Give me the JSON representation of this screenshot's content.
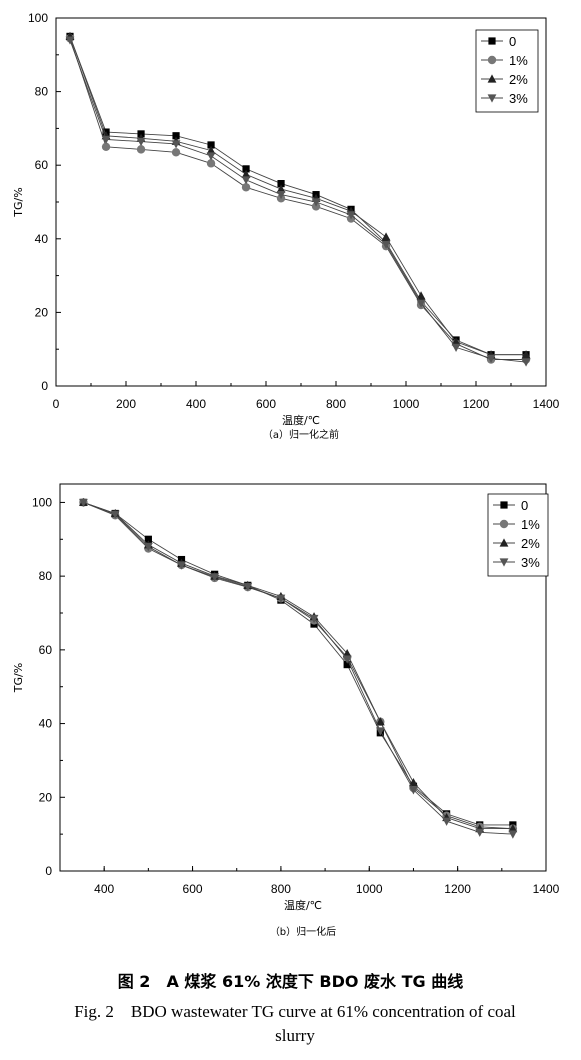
{
  "chart_data": [
    {
      "type": "line",
      "xlabel": "温度/℃",
      "ylabel": "TG/%",
      "sublabel": "（a）归一化之前",
      "xlim": [
        0,
        1400
      ],
      "ylim": [
        0,
        100
      ],
      "xticks": [
        0,
        200,
        400,
        600,
        800,
        1000,
        1200,
        1400
      ],
      "yticks": [
        0,
        20,
        40,
        60,
        80,
        100
      ],
      "grid": false,
      "legend_position": "top-right",
      "x": [
        40,
        143,
        243,
        343,
        443,
        543,
        643,
        743,
        843,
        943,
        1043,
        1143,
        1243,
        1343
      ],
      "series": [
        {
          "name": "0",
          "marker": "square",
          "values": [
            95,
            69,
            68.5,
            68,
            65.5,
            59,
            55,
            52,
            48,
            39,
            23,
            12.5,
            8.5,
            8.5
          ]
        },
        {
          "name": "1%",
          "marker": "circle",
          "values": [
            94.5,
            65,
            64.3,
            63.5,
            60.5,
            54,
            51,
            48.8,
            45.5,
            38,
            22,
            11.5,
            7.2,
            7.2
          ]
        },
        {
          "name": "2%",
          "marker": "triangle-up",
          "values": [
            95,
            68,
            67.3,
            66.5,
            64,
            57.5,
            53.5,
            51,
            47.5,
            40.5,
            24.5,
            12,
            8.5,
            8.5
          ]
        },
        {
          "name": "3%",
          "marker": "triangle-down",
          "values": [
            94,
            67,
            66.4,
            65.8,
            62.5,
            56,
            52,
            50,
            46.5,
            38.5,
            22.5,
            10.5,
            7.5,
            6.5
          ]
        }
      ]
    },
    {
      "type": "line",
      "xlabel": "温度/℃",
      "ylabel": "TG/%",
      "sublabel": "（b）归一化后",
      "xlim": [
        300,
        1400
      ],
      "ylim": [
        0,
        105
      ],
      "xticks": [
        400,
        600,
        800,
        1000,
        1200,
        1400
      ],
      "yticks": [
        0,
        20,
        40,
        60,
        80,
        100
      ],
      "grid": false,
      "legend_position": "top-right",
      "x": [
        353,
        425,
        500,
        575,
        650,
        725,
        800,
        875,
        950,
        1025,
        1100,
        1175,
        1250,
        1325
      ],
      "series": [
        {
          "name": "0",
          "marker": "square",
          "values": [
            100,
            97,
            90,
            84.5,
            80.5,
            77.5,
            73.5,
            67,
            56,
            37.5,
            23,
            15.5,
            12.5,
            12.5
          ]
        },
        {
          "name": "1%",
          "marker": "circle",
          "values": [
            100,
            96.5,
            87.5,
            83,
            79.5,
            77,
            74,
            68,
            58,
            40.5,
            22.5,
            15,
            12,
            11.5
          ]
        },
        {
          "name": "2%",
          "marker": "triangle-up",
          "values": [
            100,
            97,
            88.5,
            83.5,
            80,
            77.5,
            74.5,
            69,
            59,
            40.5,
            24,
            14.5,
            11.5,
            11.5
          ]
        },
        {
          "name": "3%",
          "marker": "triangle-down",
          "values": [
            100,
            96.8,
            88,
            83,
            79.8,
            77.2,
            74,
            68.5,
            57.5,
            38,
            22,
            13.5,
            10.5,
            10
          ]
        }
      ]
    }
  ],
  "caption_cn": "图 2　A 煤浆 61% 浓度下 BDO 废水 TG 曲线",
  "caption_en": "Fig. 2　BDO wastewater TG curve at 61% concentration of coal slurry"
}
